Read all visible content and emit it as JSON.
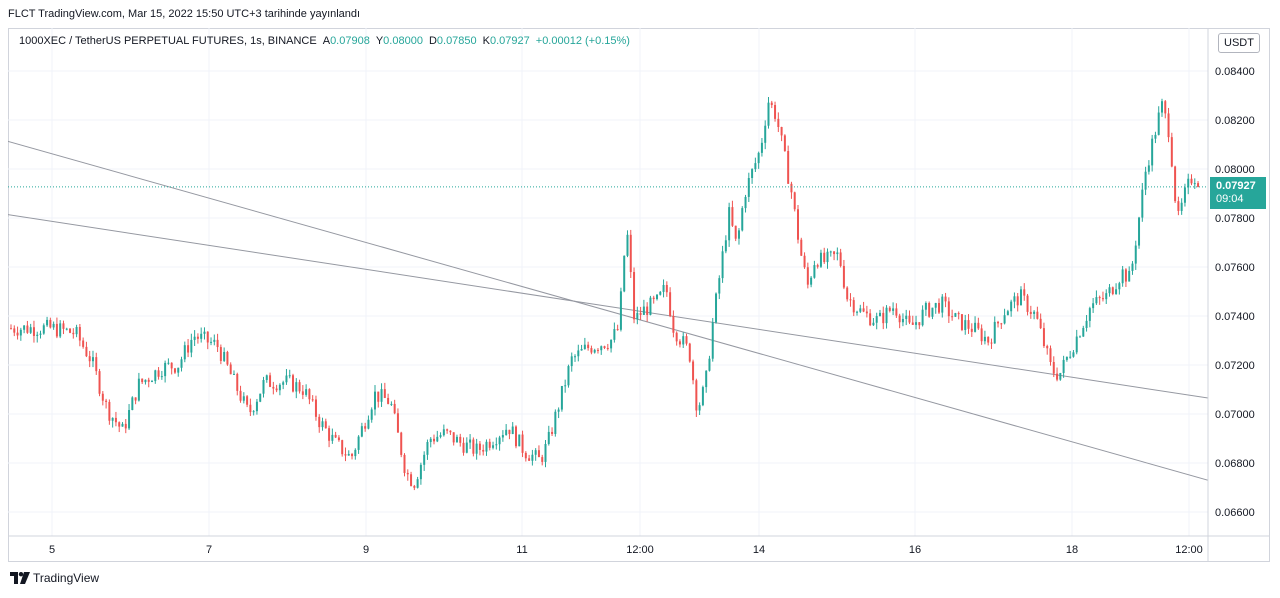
{
  "header": {
    "published_text": "FLCT TradingView.com, Mar 15, 2022 15:50 UTC+3 tarihinde yayınlandı"
  },
  "legend": {
    "symbol": "1000XEC / TetherUS PERPETUAL FUTURES, 1s, BINANCE",
    "open_label": "A",
    "open": "0.07908",
    "high_label": "Y",
    "high": "0.08000",
    "low_label": "D",
    "low": "0.07850",
    "close_label": "K",
    "close": "0.07927",
    "change": "+0.00012 (+0.15%)"
  },
  "currency_button": "USDT",
  "last_price": {
    "value": "0.07927",
    "countdown": "09:04"
  },
  "footer": {
    "brand": "TradingView"
  },
  "colors": {
    "up": "#26a69a",
    "down": "#ef5350",
    "grid": "#f0f3fa",
    "trendline": "#9598a1"
  },
  "chart_data": {
    "type": "candlestick",
    "interval": "1h",
    "y_axis": {
      "labels": [
        "0.08400",
        "0.08200",
        "0.08000",
        "0.07800",
        "0.07600",
        "0.07400",
        "0.07200",
        "0.07000",
        "0.06800",
        "0.06600"
      ],
      "ylim": [
        0.0649,
        0.0853
      ]
    },
    "x_axis": {
      "labels": [
        "5",
        "7",
        "9",
        "11",
        "12:00",
        "14",
        "16",
        "18",
        "12:00"
      ]
    },
    "last_price": 0.07927,
    "series": [
      {
        "name": "1000XECUSDT",
        "approx_close_path": [
          [
            0.0,
            0.0735
          ],
          [
            0.3,
            0.0733
          ],
          [
            0.5,
            0.0722
          ],
          [
            0.7,
            0.0702
          ],
          [
            0.9,
            0.0693
          ],
          [
            1.1,
            0.0712
          ],
          [
            1.4,
            0.0719
          ],
          [
            1.6,
            0.072
          ],
          [
            1.8,
            0.0732
          ],
          [
            2.1,
            0.0728
          ],
          [
            2.3,
            0.0714
          ],
          [
            2.5,
            0.07
          ],
          [
            2.7,
            0.0713
          ],
          [
            3.0,
            0.0713
          ],
          [
            3.2,
            0.071
          ],
          [
            3.4,
            0.0697
          ],
          [
            3.6,
            0.0688
          ],
          [
            3.8,
            0.0682
          ],
          [
            4.1,
            0.0708
          ],
          [
            4.3,
            0.0705
          ],
          [
            4.5,
            0.0676
          ],
          [
            4.6,
            0.0672
          ],
          [
            4.8,
            0.069
          ],
          [
            5.0,
            0.0692
          ],
          [
            5.2,
            0.0688
          ],
          [
            5.4,
            0.0685
          ],
          [
            5.6,
            0.069
          ],
          [
            5.8,
            0.0695
          ],
          [
            6.0,
            0.0685
          ],
          [
            6.2,
            0.0681
          ],
          [
            6.3,
            0.0688
          ],
          [
            6.6,
            0.0722
          ],
          [
            6.8,
            0.0727
          ],
          [
            7.1,
            0.073
          ],
          [
            7.2,
            0.0735
          ],
          [
            7.3,
            0.0777
          ],
          [
            7.4,
            0.0738
          ],
          [
            7.5,
            0.0742
          ],
          [
            7.7,
            0.0746
          ],
          [
            7.8,
            0.0752
          ],
          [
            7.9,
            0.0735
          ],
          [
            8.1,
            0.0725
          ],
          [
            8.2,
            0.0702
          ],
          [
            8.3,
            0.0711
          ],
          [
            8.4,
            0.0738
          ],
          [
            8.6,
            0.0782
          ],
          [
            8.7,
            0.0768
          ],
          [
            8.8,
            0.079
          ],
          [
            9.0,
            0.0808
          ],
          [
            9.1,
            0.0828
          ],
          [
            9.2,
            0.0822
          ],
          [
            9.4,
            0.079
          ],
          [
            9.5,
            0.0768
          ],
          [
            9.6,
            0.0752
          ],
          [
            9.7,
            0.0764
          ],
          [
            9.8,
            0.0762
          ],
          [
            10.0,
            0.0765
          ],
          [
            10.1,
            0.0748
          ],
          [
            10.3,
            0.0741
          ],
          [
            10.5,
            0.0738
          ],
          [
            10.7,
            0.0744
          ],
          [
            10.9,
            0.0735
          ],
          [
            11.1,
            0.0742
          ],
          [
            11.3,
            0.0745
          ],
          [
            11.5,
            0.0738
          ],
          [
            11.7,
            0.0735
          ],
          [
            11.9,
            0.073
          ],
          [
            12.1,
            0.0742
          ],
          [
            12.3,
            0.0748
          ],
          [
            12.5,
            0.074
          ],
          [
            12.7,
            0.0718
          ],
          [
            12.8,
            0.0716
          ],
          [
            13.0,
            0.073
          ],
          [
            13.2,
            0.0744
          ],
          [
            13.4,
            0.0748
          ],
          [
            13.6,
            0.0758
          ],
          [
            13.7,
            0.0755
          ],
          [
            13.9,
            0.08
          ],
          [
            14.1,
            0.0826
          ],
          [
            14.2,
            0.0815
          ],
          [
            14.3,
            0.0778
          ],
          [
            14.4,
            0.079
          ],
          [
            14.5,
            0.0798
          ],
          [
            14.6,
            0.0793
          ]
        ]
      }
    ],
    "trendlines": [
      {
        "name": "descending-line-1",
        "from": [
          -1.3,
          0.0818
        ],
        "to": [
          17.0,
          0.0652
        ]
      },
      {
        "name": "descending-line-2",
        "from": [
          -1.3,
          0.0785
        ],
        "to": [
          20.5,
          0.0678
        ]
      }
    ]
  }
}
